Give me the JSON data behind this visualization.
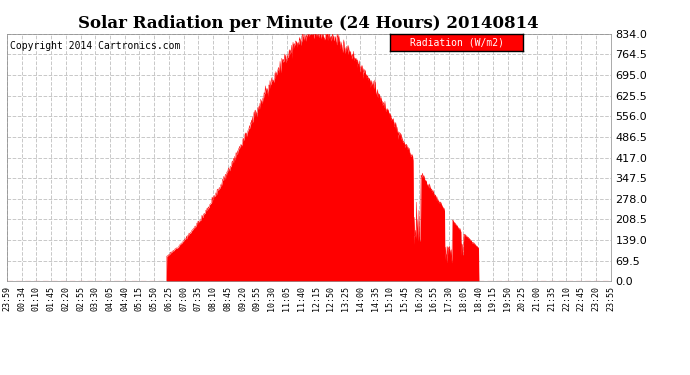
{
  "title": "Solar Radiation per Minute (24 Hours) 20140814",
  "copyright": "Copyright 2014 Cartronics.com",
  "legend_label": "Radiation (W/m2)",
  "y_ticks": [
    0.0,
    69.5,
    139.0,
    208.5,
    278.0,
    347.5,
    417.0,
    486.5,
    556.0,
    625.5,
    695.0,
    764.5,
    834.0
  ],
  "y_max": 834.0,
  "fill_color": "#FF0000",
  "line_color": "#FF0000",
  "bg_color": "#FFFFFF",
  "grid_color": "#C8C8C8",
  "legend_bg": "#FF0000",
  "legend_text_color": "#FFFFFF",
  "x_tick_labels": [
    "23:59",
    "00:34",
    "01:10",
    "01:45",
    "02:20",
    "02:55",
    "03:30",
    "04:05",
    "04:40",
    "05:15",
    "05:50",
    "06:25",
    "07:00",
    "07:35",
    "08:10",
    "08:45",
    "09:20",
    "09:55",
    "10:30",
    "11:05",
    "11:40",
    "12:15",
    "12:50",
    "13:25",
    "14:00",
    "14:35",
    "15:10",
    "15:45",
    "16:20",
    "16:55",
    "17:30",
    "18:05",
    "18:40",
    "19:15",
    "19:50",
    "20:25",
    "21:00",
    "21:35",
    "22:10",
    "22:45",
    "23:20",
    "23:55"
  ],
  "peak_value": 834.0,
  "sunrise_hour": 6.35,
  "sunset_hour": 18.75,
  "peak_hour": 12.35,
  "sigma_rise": 2.8,
  "sigma_fall": 3.2
}
